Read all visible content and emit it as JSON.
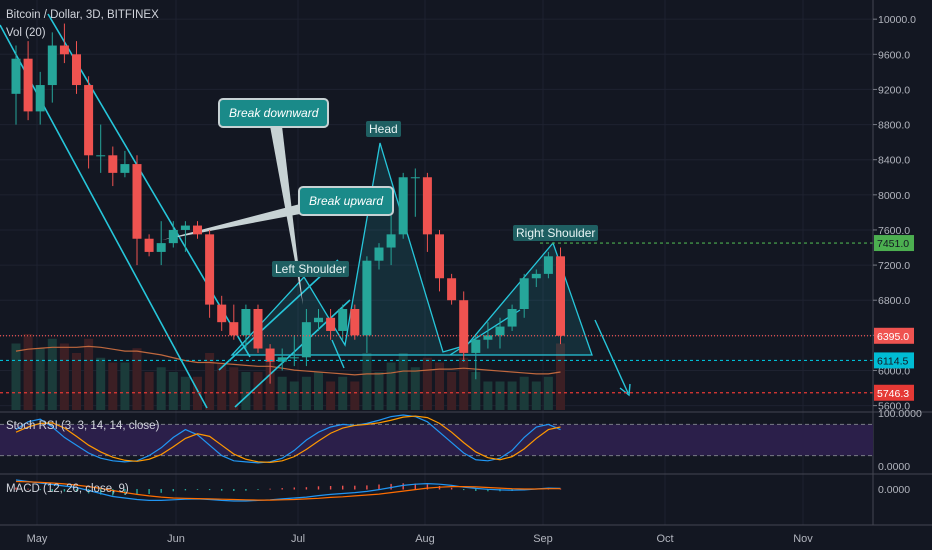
{
  "header": {
    "title": "Bitcoin / Dollar, 3D, BITFINEX",
    "volume_label": "Vol (20)"
  },
  "annotations": {
    "break_downward": "Break downward",
    "break_upward": "Break upward",
    "head": "Head",
    "left_shoulder": "Left Shoulder",
    "right_shoulder": "Right Shoulder"
  },
  "indicators": {
    "stoch_title": "Stoch RSI (3, 3, 14, 14, close)",
    "stoch_high": "100.0000",
    "stoch_low": "0.0000",
    "macd_title": "MACD (12, 26, close, 9)",
    "macd_zero": "0.0000"
  },
  "colors": {
    "background": "#131722",
    "up": "#26a69a",
    "down": "#ef5350",
    "pattern": "#26c6da",
    "resistance": "#4caf50",
    "support": "#00bcd4",
    "target": "#e53935",
    "stoch_band": "#2b1f4a"
  },
  "chart_data": {
    "type": "candlestick",
    "price_axis": {
      "ticks": [
        5600,
        6000,
        6400,
        6800,
        7200,
        7600,
        8000,
        8400,
        8800,
        9200,
        9600,
        10000
      ],
      "tick_labels": [
        "5600.0",
        "6000.0",
        "6400.0",
        "6800.0",
        "7200.0",
        "7600.0",
        "8000.0",
        "8400.0",
        "8800.0",
        "9200.0",
        "9600.0",
        "10000.0"
      ],
      "range": [
        5550,
        10150
      ]
    },
    "time_axis": {
      "labels": [
        "May",
        "Jun",
        "Jul",
        "Aug",
        "Sep",
        "Oct",
        "Nov"
      ]
    },
    "price_labels": [
      {
        "value": "7451.0",
        "price": 7451,
        "kind": "resistance"
      },
      {
        "value": "6395.0",
        "price": 6395,
        "kind": "last"
      },
      {
        "value": "6114.5",
        "price": 6114.5,
        "kind": "support"
      },
      {
        "value": "5746.3",
        "price": 5746.3,
        "kind": "target"
      }
    ],
    "candles": [
      {
        "o": 9150,
        "h": 9700,
        "l": 8800,
        "c": 9550
      },
      {
        "o": 9550,
        "h": 9750,
        "l": 8850,
        "c": 8950
      },
      {
        "o": 8950,
        "h": 9400,
        "l": 8800,
        "c": 9250
      },
      {
        "o": 9250,
        "h": 9850,
        "l": 9050,
        "c": 9700
      },
      {
        "o": 9700,
        "h": 9950,
        "l": 9500,
        "c": 9600
      },
      {
        "o": 9600,
        "h": 9750,
        "l": 9150,
        "c": 9250
      },
      {
        "o": 9250,
        "h": 9350,
        "l": 8300,
        "c": 8450
      },
      {
        "o": 8450,
        "h": 8800,
        "l": 8250,
        "c": 8450
      },
      {
        "o": 8450,
        "h": 8550,
        "l": 8100,
        "c": 8250
      },
      {
        "o": 8250,
        "h": 8500,
        "l": 8200,
        "c": 8350
      },
      {
        "o": 8350,
        "h": 8450,
        "l": 7200,
        "c": 7500
      },
      {
        "o": 7500,
        "h": 7550,
        "l": 7300,
        "c": 7350
      },
      {
        "o": 7350,
        "h": 7700,
        "l": 7200,
        "c": 7450
      },
      {
        "o": 7450,
        "h": 7700,
        "l": 7400,
        "c": 7600
      },
      {
        "o": 7600,
        "h": 7700,
        "l": 7350,
        "c": 7650
      },
      {
        "o": 7650,
        "h": 7700,
        "l": 7500,
        "c": 7550
      },
      {
        "o": 7550,
        "h": 7600,
        "l": 6600,
        "c": 6750
      },
      {
        "o": 6750,
        "h": 6850,
        "l": 6450,
        "c": 6550
      },
      {
        "o": 6550,
        "h": 6750,
        "l": 6350,
        "c": 6400
      },
      {
        "o": 6400,
        "h": 6750,
        "l": 6250,
        "c": 6700
      },
      {
        "o": 6700,
        "h": 6750,
        "l": 6200,
        "c": 6250
      },
      {
        "o": 6250,
        "h": 6300,
        "l": 5850,
        "c": 6100
      },
      {
        "o": 6100,
        "h": 6250,
        "l": 6000,
        "c": 6150
      },
      {
        "o": 6150,
        "h": 6400,
        "l": 6050,
        "c": 6150
      },
      {
        "o": 6150,
        "h": 6700,
        "l": 6050,
        "c": 6550
      },
      {
        "o": 6550,
        "h": 6700,
        "l": 6450,
        "c": 6600
      },
      {
        "o": 6600,
        "h": 6700,
        "l": 6350,
        "c": 6450
      },
      {
        "o": 6450,
        "h": 6750,
        "l": 6350,
        "c": 6700
      },
      {
        "o": 6700,
        "h": 6750,
        "l": 6350,
        "c": 6400
      },
      {
        "o": 6400,
        "h": 7300,
        "l": 6200,
        "c": 7250
      },
      {
        "o": 7250,
        "h": 7450,
        "l": 7150,
        "c": 7400
      },
      {
        "o": 7400,
        "h": 7800,
        "l": 7200,
        "c": 7550
      },
      {
        "o": 7550,
        "h": 8250,
        "l": 7500,
        "c": 8200
      },
      {
        "o": 8200,
        "h": 8300,
        "l": 7750,
        "c": 8200
      },
      {
        "o": 8200,
        "h": 8250,
        "l": 7350,
        "c": 7550
      },
      {
        "o": 7550,
        "h": 7600,
        "l": 6900,
        "c": 7050
      },
      {
        "o": 7050,
        "h": 7100,
        "l": 6750,
        "c": 6800
      },
      {
        "o": 6800,
        "h": 6900,
        "l": 6100,
        "c": 6200
      },
      {
        "o": 6200,
        "h": 6400,
        "l": 5900,
        "c": 6350
      },
      {
        "o": 6350,
        "h": 6550,
        "l": 6250,
        "c": 6400
      },
      {
        "o": 6400,
        "h": 6600,
        "l": 6250,
        "c": 6500
      },
      {
        "o": 6500,
        "h": 6750,
        "l": 6450,
        "c": 6700
      },
      {
        "o": 6700,
        "h": 7100,
        "l": 6600,
        "c": 7050
      },
      {
        "o": 7050,
        "h": 7150,
        "l": 6950,
        "c": 7100
      },
      {
        "o": 7100,
        "h": 7350,
        "l": 7050,
        "c": 7300
      },
      {
        "o": 7300,
        "h": 7400,
        "l": 6300,
        "c": 6395
      }
    ],
    "volume": [
      0.7,
      0.8,
      0.65,
      0.75,
      0.7,
      0.6,
      0.75,
      0.55,
      0.5,
      0.5,
      0.65,
      0.4,
      0.45,
      0.4,
      0.35,
      0.35,
      0.6,
      0.5,
      0.45,
      0.4,
      0.4,
      0.55,
      0.35,
      0.3,
      0.35,
      0.4,
      0.3,
      0.35,
      0.3,
      0.6,
      0.4,
      0.5,
      0.6,
      0.45,
      0.55,
      0.5,
      0.4,
      0.55,
      0.4,
      0.3,
      0.3,
      0.3,
      0.35,
      0.3,
      0.35,
      0.7
    ],
    "volume_ma": [
      0.62,
      0.64,
      0.65,
      0.66,
      0.66,
      0.66,
      0.67,
      0.66,
      0.64,
      0.62,
      0.62,
      0.6,
      0.58,
      0.55,
      0.52,
      0.5,
      0.5,
      0.49,
      0.48,
      0.47,
      0.46,
      0.46,
      0.44,
      0.42,
      0.41,
      0.4,
      0.39,
      0.38,
      0.37,
      0.38,
      0.38,
      0.39,
      0.41,
      0.41,
      0.42,
      0.43,
      0.43,
      0.44,
      0.43,
      0.42,
      0.41,
      0.4,
      0.39,
      0.38,
      0.38,
      0.4
    ],
    "stoch_k": [
      70,
      85,
      90,
      75,
      55,
      40,
      25,
      15,
      10,
      8,
      10,
      20,
      35,
      55,
      70,
      60,
      40,
      20,
      10,
      8,
      6,
      8,
      15,
      30,
      50,
      65,
      75,
      80,
      78,
      82,
      88,
      95,
      98,
      95,
      85,
      65,
      45,
      25,
      12,
      10,
      15,
      30,
      55,
      75,
      80,
      70
    ],
    "stoch_d": [
      65,
      75,
      82,
      83,
      73,
      57,
      40,
      27,
      17,
      11,
      9,
      13,
      22,
      37,
      53,
      62,
      57,
      40,
      23,
      13,
      8,
      7,
      10,
      18,
      32,
      48,
      63,
      73,
      78,
      80,
      83,
      88,
      94,
      96,
      93,
      82,
      65,
      45,
      27,
      16,
      12,
      18,
      33,
      53,
      70,
      75
    ],
    "macd": [
      0.3,
      0.25,
      0.2,
      0.15,
      0.1,
      0.05,
      -0.05,
      -0.15,
      -0.25,
      -0.3,
      -0.35,
      -0.38,
      -0.38,
      -0.36,
      -0.34,
      -0.33,
      -0.35,
      -0.38,
      -0.4,
      -0.4,
      -0.38,
      -0.36,
      -0.33,
      -0.3,
      -0.27,
      -0.22,
      -0.18,
      -0.15,
      -0.12,
      -0.08,
      -0.02,
      0.05,
      0.12,
      0.16,
      0.18,
      0.16,
      0.12,
      0.06,
      0.02,
      -0.01,
      -0.03,
      -0.04,
      -0.03,
      0.0,
      0.03,
      0.02
    ],
    "macd_signal": [
      0.25,
      0.24,
      0.22,
      0.2,
      0.17,
      0.13,
      0.08,
      0.02,
      -0.05,
      -0.12,
      -0.18,
      -0.23,
      -0.27,
      -0.3,
      -0.31,
      -0.32,
      -0.33,
      -0.34,
      -0.35,
      -0.36,
      -0.37,
      -0.37,
      -0.36,
      -0.35,
      -0.33,
      -0.31,
      -0.28,
      -0.26,
      -0.23,
      -0.2,
      -0.17,
      -0.12,
      -0.07,
      -0.02,
      0.03,
      0.06,
      0.08,
      0.08,
      0.07,
      0.05,
      0.03,
      0.01,
      0.0,
      0.0,
      0.01,
      0.01
    ],
    "macd_hist": [
      0.05,
      0.01,
      -0.02,
      -0.05,
      -0.07,
      -0.08,
      -0.13,
      -0.17,
      -0.2,
      -0.18,
      -0.17,
      -0.15,
      -0.11,
      -0.06,
      -0.03,
      -0.01,
      -0.02,
      -0.04,
      -0.05,
      -0.04,
      -0.01,
      0.01,
      0.03,
      0.05,
      0.06,
      0.09,
      0.1,
      0.11,
      0.11,
      0.12,
      0.15,
      0.17,
      0.19,
      0.18,
      0.15,
      0.1,
      0.04,
      -0.02,
      -0.05,
      -0.06,
      -0.06,
      -0.05,
      -0.03,
      0.0,
      0.02,
      0.01
    ]
  }
}
